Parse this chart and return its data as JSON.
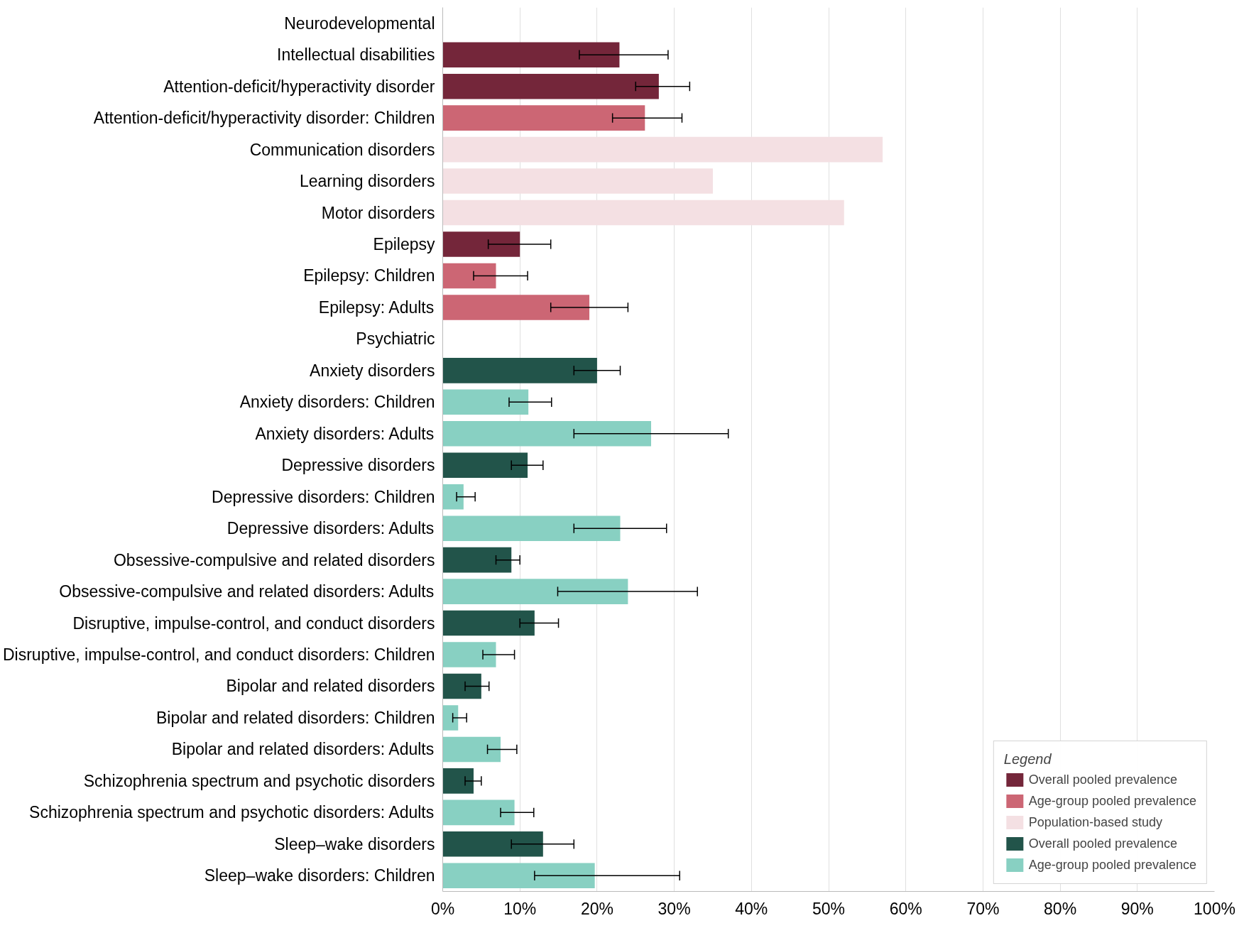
{
  "chart_data": {
    "type": "bar",
    "orientation": "horizontal",
    "legend_title": "Legend",
    "legend": "bottom right",
    "grid": "x",
    "categories": [
      "Neurodevelopmental",
      "Intellectual disabilities",
      "Attention-deficit/hyperactivity disorder",
      "Attention-deficit/hyperactivity disorder: Children",
      "Communication disorders",
      "Learning disorders",
      "Motor disorders",
      "Epilepsy",
      "Epilepsy: Children",
      "Epilepsy: Adults",
      "Psychiatric",
      "Anxiety disorders",
      "Anxiety disorders: Children",
      "Anxiety disorders: Adults",
      "Depressive disorders",
      "Depressive disorders: Children",
      "Depressive disorders: Adults",
      "Obsessive-compulsive and related disorders",
      "Obsessive-compulsive and related disorders: Adults",
      "Disruptive, impulse-control, and conduct disorders",
      "Disruptive, impulse-control, and conduct disorders: Children",
      "Bipolar and related disorders",
      "Bipolar and related disorders: Children",
      "Bipolar and related disorders: Adults",
      "Schizophrenia spectrum and psychotic disorders",
      "Schizophrenia spectrum and psychotic disorders: Adults",
      "Sleep–wake disorders",
      "Sleep–wake disorders: Children"
    ],
    "xlim": [
      0,
      100
    ],
    "xticks": [
      {
        "value": 0,
        "label": "0%"
      },
      {
        "value": 10,
        "label": "10%"
      },
      {
        "value": 20,
        "label": "20%"
      },
      {
        "value": 30,
        "label": "30%"
      },
      {
        "value": 40,
        "label": "40%"
      },
      {
        "value": 50,
        "label": "50%"
      },
      {
        "value": 60,
        "label": "60%"
      },
      {
        "value": 70,
        "label": "70%"
      },
      {
        "value": 80,
        "label": "80%"
      },
      {
        "value": 90,
        "label": "90%"
      },
      {
        "value": 100,
        "label": "100%"
      }
    ],
    "series": [
      {
        "name": "Overall pooled prevalence",
        "color": "#74263a",
        "values": [
          null,
          22.9,
          28.0,
          null,
          null,
          null,
          null,
          10.0,
          null,
          null,
          null,
          null,
          null,
          null,
          null,
          null,
          null,
          null,
          null,
          null,
          null,
          null,
          null,
          null,
          null,
          null,
          null,
          null
        ],
        "errors": [
          null,
          [
            17.7,
            29.2
          ],
          [
            25.0,
            32.0
          ],
          null,
          null,
          null,
          null,
          [
            5.9,
            14.0
          ],
          null,
          null,
          null,
          null,
          null,
          null,
          null,
          null,
          null,
          null,
          null,
          null,
          null,
          null,
          null,
          null,
          null,
          null,
          null,
          null
        ]
      },
      {
        "name": "Age-group pooled prevalence",
        "color": "#cc6674",
        "values": [
          null,
          null,
          null,
          26.2,
          null,
          null,
          null,
          null,
          6.9,
          19.0,
          null,
          null,
          null,
          null,
          null,
          null,
          null,
          null,
          null,
          null,
          null,
          null,
          null,
          null,
          null,
          null,
          null,
          null
        ],
        "errors": [
          null,
          null,
          null,
          [
            22.0,
            31.0
          ],
          null,
          null,
          null,
          null,
          [
            4.0,
            11.0
          ],
          [
            14.0,
            24.0
          ],
          null,
          null,
          null,
          null,
          null,
          null,
          null,
          null,
          null,
          null,
          null,
          null,
          null,
          null,
          null,
          null,
          null,
          null
        ]
      },
      {
        "name": "Population-based study",
        "color": "#f4e0e3",
        "values": [
          null,
          null,
          null,
          null,
          57.0,
          35.0,
          52.0,
          null,
          null,
          null,
          null,
          null,
          null,
          null,
          null,
          null,
          null,
          null,
          null,
          null,
          null,
          null,
          null,
          null,
          null,
          null,
          null,
          null
        ]
      },
      {
        "name": "Overall pooled prevalence",
        "color": "#22544a",
        "values": [
          null,
          null,
          null,
          null,
          null,
          null,
          null,
          null,
          null,
          null,
          null,
          20.0,
          null,
          null,
          11.0,
          null,
          null,
          8.9,
          null,
          11.9,
          null,
          5.0,
          null,
          null,
          4.0,
          null,
          13.0,
          null
        ],
        "errors": [
          null,
          null,
          null,
          null,
          null,
          null,
          null,
          null,
          null,
          null,
          null,
          [
            17.0,
            23.0
          ],
          null,
          null,
          [
            8.9,
            13.0
          ],
          null,
          null,
          [
            6.9,
            10.0
          ],
          null,
          [
            10.0,
            15.0
          ],
          null,
          [
            2.9,
            6.0
          ],
          null,
          null,
          [
            2.9,
            5.0
          ],
          null,
          [
            8.9,
            17.0
          ],
          null
        ]
      },
      {
        "name": "Age-group pooled prevalence",
        "color": "#88d0c2",
        "values": [
          null,
          null,
          null,
          null,
          null,
          null,
          null,
          null,
          null,
          null,
          null,
          null,
          11.1,
          27.0,
          null,
          2.7,
          23.0,
          null,
          24.0,
          null,
          6.9,
          null,
          2.0,
          7.5,
          null,
          9.3,
          null,
          19.7
        ],
        "errors": [
          null,
          null,
          null,
          null,
          null,
          null,
          null,
          null,
          null,
          null,
          null,
          null,
          [
            8.6,
            14.1
          ],
          [
            17.0,
            37.0
          ],
          null,
          [
            1.8,
            4.2
          ],
          [
            17.0,
            29.0
          ],
          null,
          [
            14.9,
            33.0
          ],
          null,
          [
            5.2,
            9.3
          ],
          null,
          [
            1.3,
            3.1
          ],
          [
            5.8,
            9.6
          ],
          null,
          [
            7.5,
            11.8
          ],
          null,
          [
            11.9,
            30.7
          ]
        ]
      }
    ]
  }
}
